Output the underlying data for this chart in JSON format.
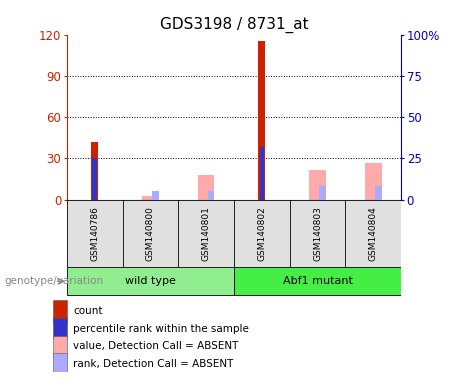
{
  "title": "GDS3198 / 8731_at",
  "samples": [
    "GSM140786",
    "GSM140800",
    "GSM140801",
    "GSM140802",
    "GSM140803",
    "GSM140804"
  ],
  "groups": [
    {
      "name": "wild type",
      "color": "#90ee90",
      "indices": [
        0,
        1,
        2
      ]
    },
    {
      "name": "Abf1 mutant",
      "color": "#44ee44",
      "indices": [
        3,
        4,
        5
      ]
    }
  ],
  "count": [
    42,
    0,
    0,
    115,
    0,
    0
  ],
  "percentile_rank": [
    25,
    0,
    0,
    32,
    0,
    0
  ],
  "absent_value": [
    0,
    2,
    15,
    0,
    18,
    22
  ],
  "absent_rank": [
    0,
    5,
    5,
    0,
    8,
    8
  ],
  "ylim_left": [
    0,
    120
  ],
  "ylim_right": [
    0,
    100
  ],
  "yticks_left": [
    0,
    30,
    60,
    90,
    120
  ],
  "yticks_right": [
    0,
    25,
    50,
    75,
    100
  ],
  "ytick_labels_left": [
    "0",
    "30",
    "60",
    "90",
    "120"
  ],
  "ytick_labels_right": [
    "0",
    "25",
    "50",
    "75",
    "100%"
  ],
  "left_axis_color": "#cc2200",
  "right_axis_color": "#0000cc",
  "count_color": "#cc2200",
  "rank_color": "#3333cc",
  "absent_value_color": "#ffaaaa",
  "absent_rank_color": "#aaaaff",
  "legend_items": [
    {
      "label": "count",
      "color": "#cc2200"
    },
    {
      "label": "percentile rank within the sample",
      "color": "#3333cc"
    },
    {
      "label": "value, Detection Call = ABSENT",
      "color": "#ffaaaa"
    },
    {
      "label": "rank, Detection Call = ABSENT",
      "color": "#aaaaff"
    }
  ],
  "genotype_label": "genotype/variation",
  "plot_bg_color": "#e0e0e0",
  "title_fontsize": 11,
  "tick_fontsize": 8.5
}
